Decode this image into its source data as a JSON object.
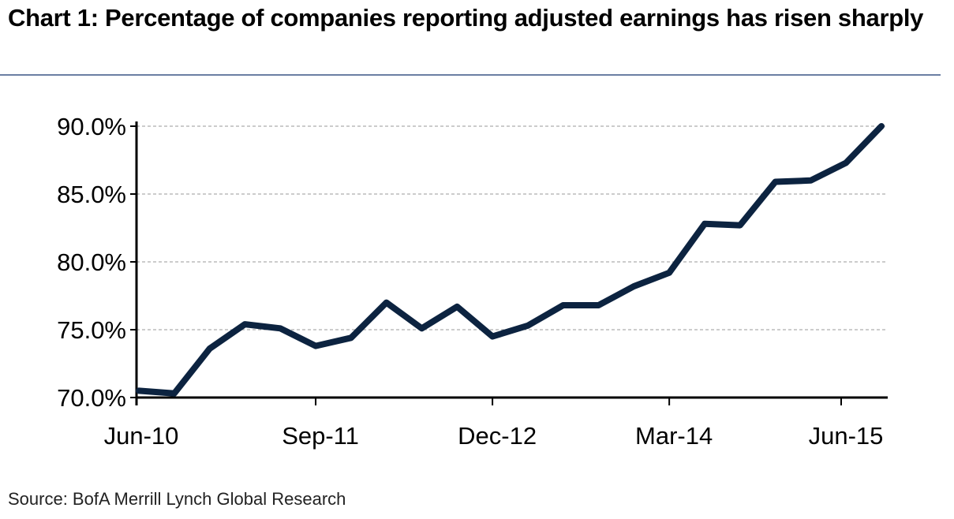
{
  "title": "Chart 1: Percentage of companies reporting adjusted earnings has risen sharply",
  "source": "Source: BofA Merrill Lynch Global Research",
  "colors": {
    "line": "#0c2340",
    "grid": "#9a9a9a",
    "axis": "#000000",
    "rule": "#6b7fa3"
  },
  "chart_data": {
    "type": "line",
    "title": "Chart 1: Percentage of companies reporting adjusted earnings has risen sharply",
    "xlabel": "",
    "ylabel": "",
    "ylim": [
      70,
      90
    ],
    "yticks": [
      70,
      75,
      80,
      85,
      90
    ],
    "ytick_labels": [
      "70.0%",
      "75.0%",
      "80.0%",
      "85.0%",
      "90.0%"
    ],
    "xtick_labels": [
      "Jun-10",
      "Sep-11",
      "Dec-12",
      "Mar-14",
      "Jun-15"
    ],
    "xtick_index": [
      0,
      5,
      10,
      15,
      20
    ],
    "grid": "horizontal dashed",
    "legend": "none",
    "x": [
      "Jun-10",
      "Sep-10",
      "Dec-10",
      "Mar-11",
      "Jun-11",
      "Sep-11",
      "Dec-11",
      "Mar-12",
      "Jun-12",
      "Sep-12",
      "Dec-12",
      "Mar-13",
      "Jun-13",
      "Sep-13",
      "Dec-13",
      "Mar-14",
      "Jun-14",
      "Sep-14",
      "Dec-14",
      "Mar-15",
      "Jun-15",
      "Sep-15"
    ],
    "series": [
      {
        "values": [
          70.5,
          70.3,
          73.6,
          75.4,
          75.1,
          73.8,
          74.4,
          77.0,
          75.1,
          76.7,
          74.5,
          75.3,
          76.8,
          76.8,
          78.2,
          79.2,
          82.8,
          82.7,
          85.9,
          86.0,
          87.3,
          90.0
        ]
      }
    ]
  }
}
